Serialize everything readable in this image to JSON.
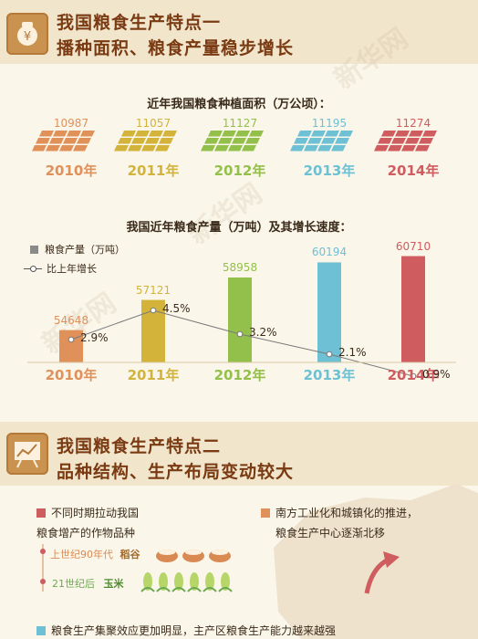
{
  "section1": {
    "title": "我国粮食生产特点一",
    "subtitle": "播种面积、粮食产量稳步增长"
  },
  "area_chart_title": "近年我国粮食种植面积（万公顷）：",
  "production_chart_title": "我国近年粮食产量（万吨）及其增长速度：",
  "legend": {
    "bar_label": "粮食产量（万吨）",
    "line_label": "比上年增长"
  },
  "section2": {
    "title": "我国粮食生产特点二",
    "subtitle": "品种结构、生产布局变动较大"
  },
  "points": {
    "left_line1": "不同时期拉动我国",
    "left_line2": "粮食增产的作物品种",
    "era1": "上世纪90年代",
    "crop1": "稻谷",
    "era2": "21世纪后",
    "crop2": "玉米",
    "right_line1": "南方工业化和城镇化的推进，",
    "right_line2": "粮食生产中心逐渐北移",
    "bottom_line": "粮食生产集聚效应更加明显，主产区粮食生产能力越来越强"
  },
  "colors": {
    "y2010": "#e0915a",
    "y2011": "#d3b33a",
    "y2012": "#93c04a",
    "y2013": "#6ec0d4",
    "y2014": "#cf5c5f",
    "header": "#7a3a12",
    "point_red": "#cf5c5f",
    "point_orange": "#e0915a",
    "point_blue": "#6ec0d4"
  },
  "chart_data": [
    {
      "type": "bar",
      "title": "近年我国粮食种植面积（万公顷）：",
      "categories": [
        "2010年",
        "2011年",
        "2012年",
        "2013年",
        "2014年"
      ],
      "values": [
        10987,
        11057,
        11127,
        11195,
        11274
      ]
    },
    {
      "type": "bar",
      "title": "我国近年粮食产量（万吨）及其增长速度：",
      "categories": [
        "2010年",
        "2011年",
        "2012年",
        "2013年",
        "2014年"
      ],
      "series": [
        {
          "name": "粮食产量（万吨）",
          "values": [
            54648,
            57121,
            58958,
            60194,
            60710
          ]
        },
        {
          "name": "比上年增长",
          "values": [
            2.9,
            4.5,
            3.2,
            2.1,
            0.9
          ],
          "unit": "%"
        }
      ]
    }
  ]
}
